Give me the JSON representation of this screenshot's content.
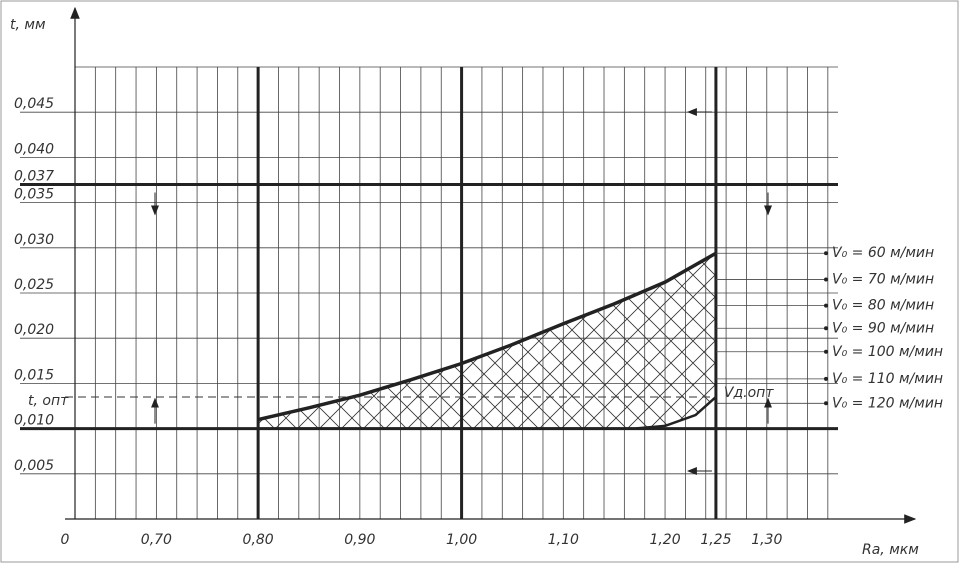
{
  "chart_data": {
    "type": "region",
    "y_title": "t,  мм",
    "x_title": "Ra, мкм",
    "origin_label": "0",
    "xlim": [
      0.62,
      1.37
    ],
    "ylim": [
      0,
      0.05
    ],
    "xticks": [
      {
        "value": 0.7,
        "label": "0,70"
      },
      {
        "value": 0.8,
        "label": "0,80"
      },
      {
        "value": 0.9,
        "label": "0,90"
      },
      {
        "value": 1.0,
        "label": "1,00"
      },
      {
        "value": 1.1,
        "label": "1,10"
      },
      {
        "value": 1.2,
        "label": "1,20"
      },
      {
        "value": 1.25,
        "label": "1,25"
      },
      {
        "value": 1.3,
        "label": "1,30"
      }
    ],
    "yticks": [
      {
        "value": 0.005,
        "label": "0,005"
      },
      {
        "value": 0.01,
        "label": "0,010"
      },
      {
        "value": 0.015,
        "label": "0,015"
      },
      {
        "value": 0.02,
        "label": "0,020"
      },
      {
        "value": 0.025,
        "label": "0,025"
      },
      {
        "value": 0.03,
        "label": "0,030"
      },
      {
        "value": 0.035,
        "label": "0,035"
      },
      {
        "value": 0.037,
        "label": "0,037"
      },
      {
        "value": 0.04,
        "label": "0,040"
      },
      {
        "value": 0.045,
        "label": "0,045"
      }
    ],
    "xgrid": [
      0.62,
      0.64,
      0.66,
      0.68,
      0.7,
      0.72,
      0.74,
      0.76,
      0.78,
      0.8,
      0.82,
      0.84,
      0.86,
      0.88,
      0.9,
      0.92,
      0.94,
      0.96,
      0.98,
      1.0,
      1.02,
      1.04,
      1.06,
      1.08,
      1.1,
      1.12,
      1.14,
      1.16,
      1.18,
      1.2,
      1.22,
      1.24,
      1.26,
      1.28,
      1.3,
      1.32,
      1.34,
      1.36
    ],
    "bounds_x": [
      0.8,
      1.0,
      1.25
    ],
    "bounds_y": [
      0.037,
      0.01
    ],
    "t_opt": {
      "label": "t, опт",
      "value": 0.0135
    },
    "v_opt_label": "Vд.опт",
    "upper": {
      "x": [
        0.8,
        0.85,
        0.9,
        0.95,
        1.0,
        1.05,
        1.1,
        1.15,
        1.2,
        1.25
      ],
      "values": [
        0.011,
        0.0123,
        0.0137,
        0.0154,
        0.0172,
        0.0193,
        0.0216,
        0.0238,
        0.0262,
        0.0294
      ]
    },
    "lower": {
      "x": [
        0.8,
        1.17,
        1.2,
        1.23,
        1.25
      ],
      "values": [
        0.01,
        0.01,
        0.0103,
        0.0115,
        0.0135
      ]
    },
    "speeds": [
      {
        "label": "V₀ = 60 м/мин",
        "value": 0.0294
      },
      {
        "label": "V₀ = 70 м/мин",
        "value": 0.0265
      },
      {
        "label": "V₀ = 80 м/мин",
        "value": 0.0236
      },
      {
        "label": "V₀ = 90 м/мин",
        "value": 0.0211
      },
      {
        "label": "V₀ = 100 м/мин",
        "value": 0.0185
      },
      {
        "label": "V₀ = 110 м/мин",
        "value": 0.0155
      },
      {
        "label": "V₀ = 120 м/мин",
        "value": 0.0128
      }
    ]
  }
}
